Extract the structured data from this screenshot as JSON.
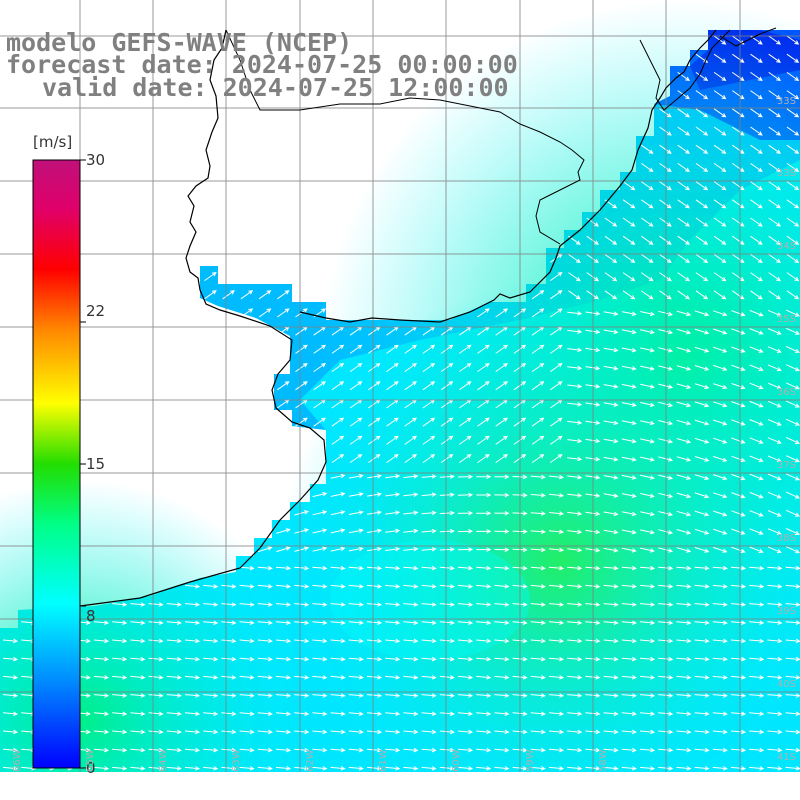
{
  "header": {
    "model_line": "modelo GEFS-WAVE (NCEP)",
    "forecast_line": "forecast date: 2024-07-25 00:00:00",
    "valid_line": "valid date: 2024-07-25 12:00:00"
  },
  "colorbar": {
    "unit": "[m/s]",
    "ticks": [
      "30",
      "22",
      "15",
      "8",
      "0"
    ],
    "tick_values": [
      30,
      22,
      15,
      8,
      0
    ],
    "range": [
      0,
      30
    ],
    "colors": [
      "#0000ff",
      "#00bfff",
      "#00ffff",
      "#00ff66",
      "#33cc00",
      "#ffff00",
      "#ff8000",
      "#ff0000",
      "#e0006a",
      "#c0107a"
    ]
  },
  "lat_labels": [
    "33S",
    "33S",
    "34S",
    "35S",
    "36S",
    "37S",
    "38S",
    "39S",
    "40S",
    "41S"
  ],
  "lon_labels": [
    "66W",
    "65W",
    "64W",
    "63W",
    "62W",
    "61W",
    "60W",
    "59W",
    "58W"
  ],
  "colors": {
    "land": "#ffffff",
    "coast": "#000000",
    "grid": "#888888",
    "arrow": "#ffffff",
    "low_wind": "#00aaff",
    "mid_wind": "#00ffcc",
    "high_wind": "#00ee88",
    "very_low": "#0022ff"
  }
}
